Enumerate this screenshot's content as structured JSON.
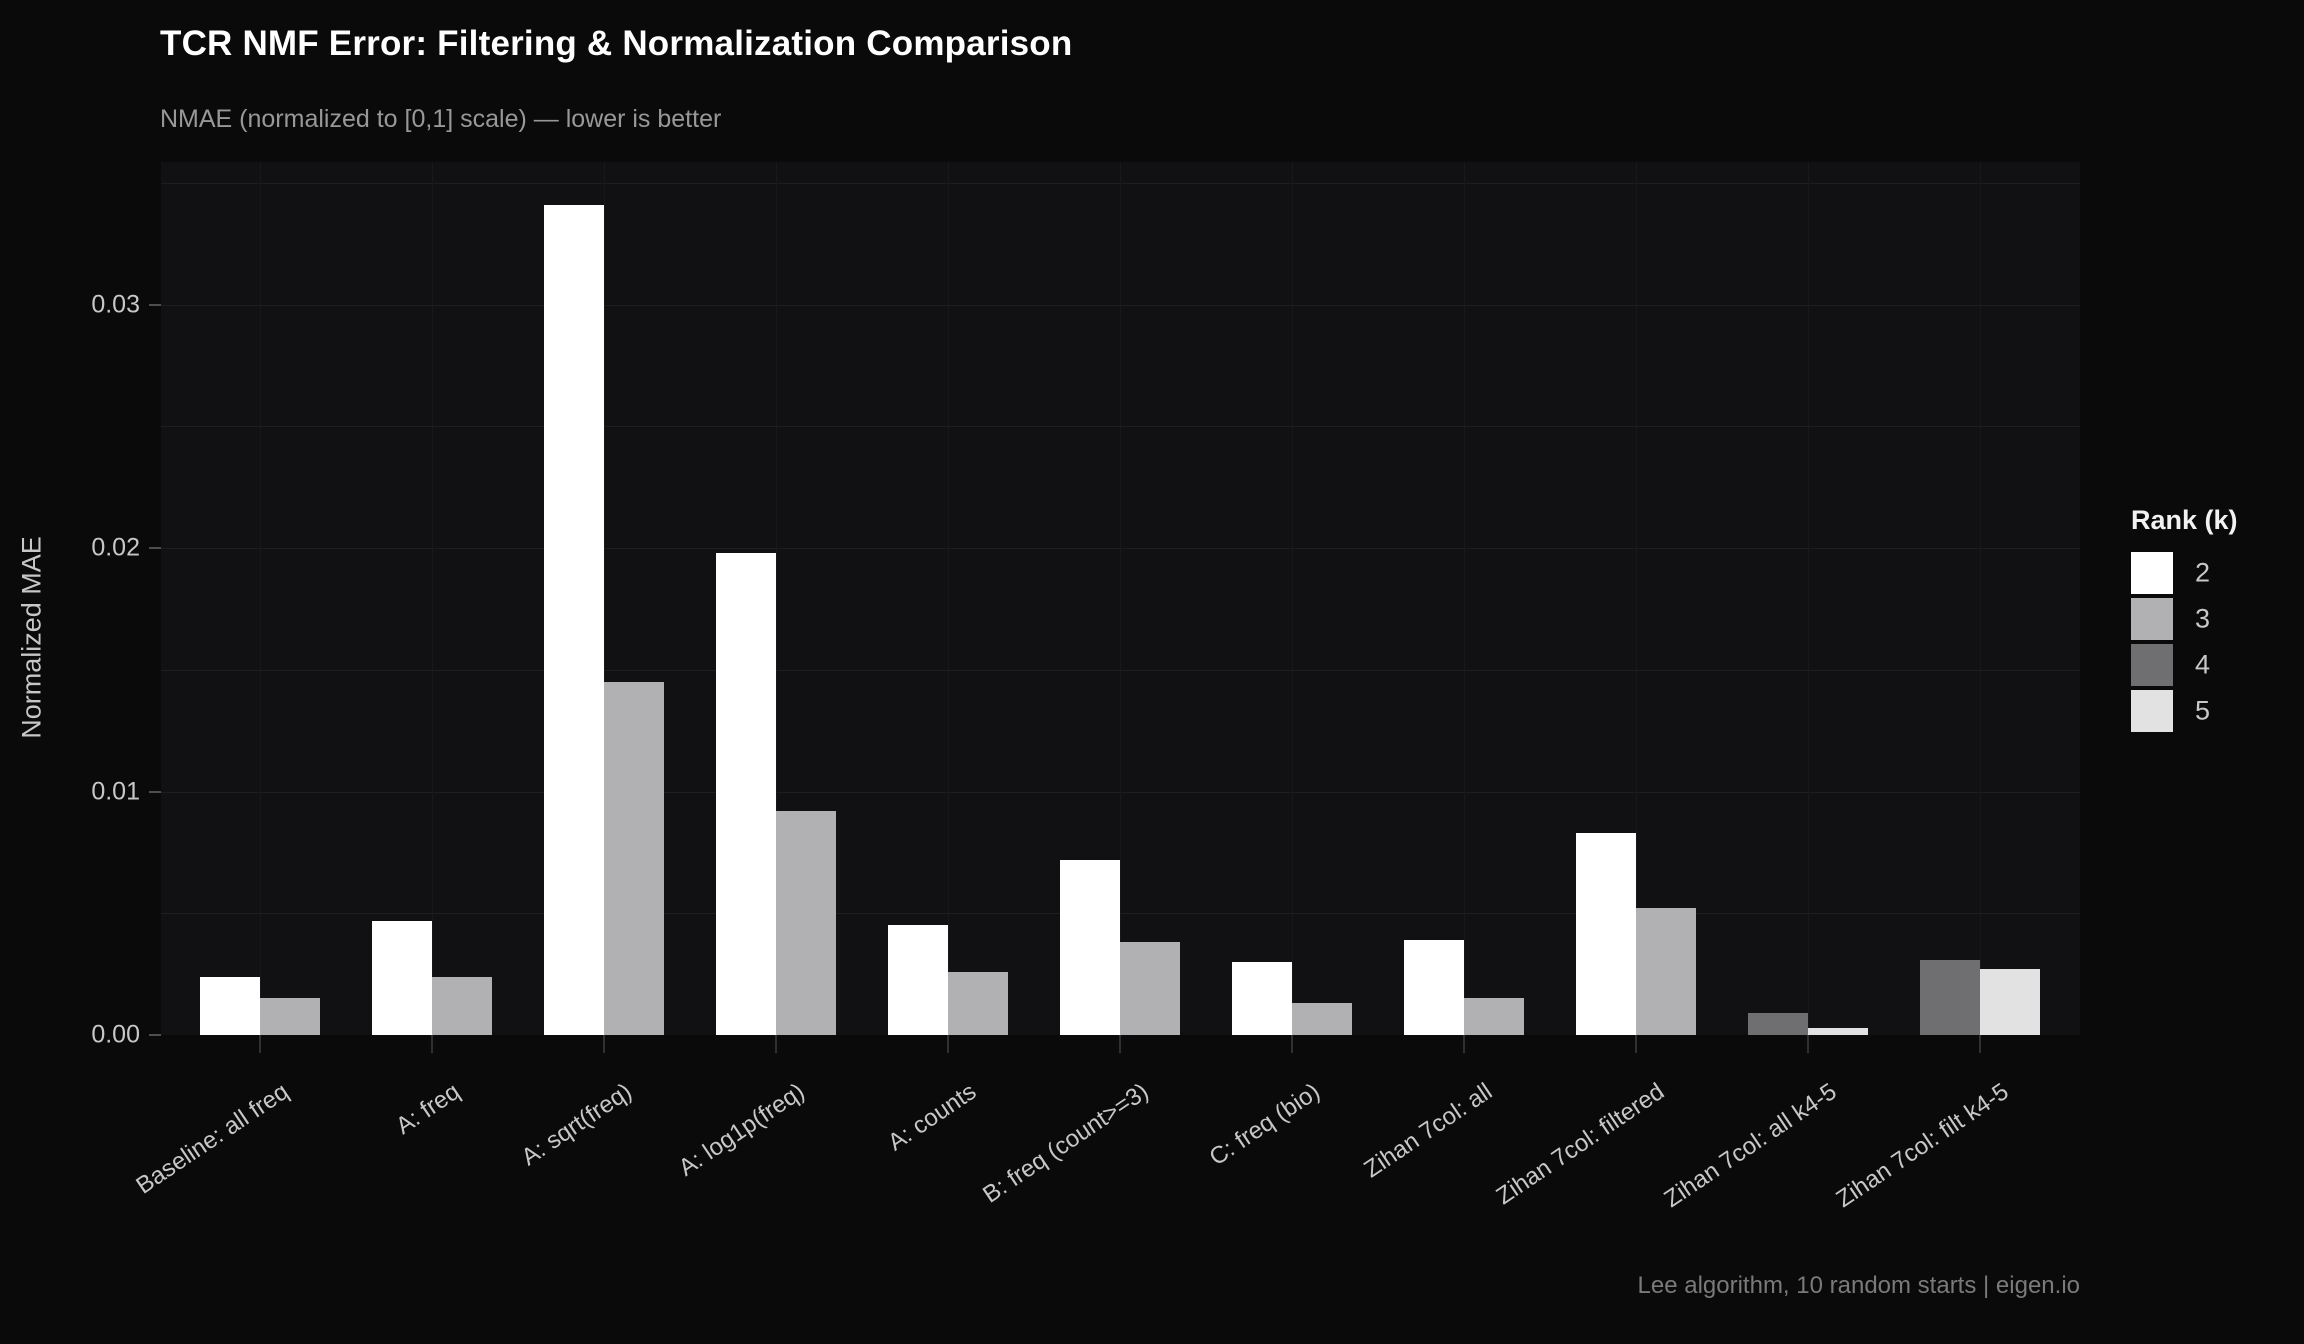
{
  "chart_data": {
    "type": "bar",
    "title": "TCR NMF Error: Filtering & Normalization Comparison",
    "subtitle": "NMAE (normalized to [0,1] scale) — lower is better",
    "ylabel": "Normalized MAE",
    "xlabel": "",
    "footer": "Lee algorithm, 10 random starts | eigen.io",
    "legend_title": "Rank (k)",
    "legend_position": "right",
    "grid": "on",
    "grid_step": 0.005,
    "ylim": [
      0,
      0.0359
    ],
    "yticks": [
      0,
      0.01,
      0.02,
      0.03
    ],
    "ytick_labels": [
      "0.00",
      "0.01",
      "0.02",
      "0.03"
    ],
    "categories": [
      "Baseline: all freq",
      "A: freq",
      "A: sqrt(freq)",
      "A: log1p(freq)",
      "A: counts",
      "B: freq (count>=3)",
      "C: freq (bio)",
      "Zihan 7col: all",
      "Zihan 7col: filtered",
      "Zihan 7col: all k4-5",
      "Zihan 7col: filt k4-5"
    ],
    "series": [
      {
        "name": "2",
        "color": "#ffffff",
        "values": [
          0.0024,
          0.0047,
          0.0341,
          0.0198,
          0.0045,
          0.0072,
          0.003,
          0.0039,
          0.0083,
          null,
          null
        ]
      },
      {
        "name": "3",
        "color": "#b1b1b3",
        "values": [
          0.0015,
          0.0024,
          0.0145,
          0.0092,
          0.0026,
          0.0038,
          0.0013,
          0.0015,
          0.0052,
          null,
          null
        ]
      },
      {
        "name": "4",
        "color": "#6f6f71",
        "values": [
          null,
          null,
          null,
          null,
          null,
          null,
          null,
          null,
          null,
          0.0009,
          0.0031
        ]
      },
      {
        "name": "5",
        "color": "#e2e2e3",
        "values": [
          null,
          null,
          null,
          null,
          null,
          null,
          null,
          null,
          null,
          0.0003,
          0.0027
        ]
      }
    ]
  }
}
